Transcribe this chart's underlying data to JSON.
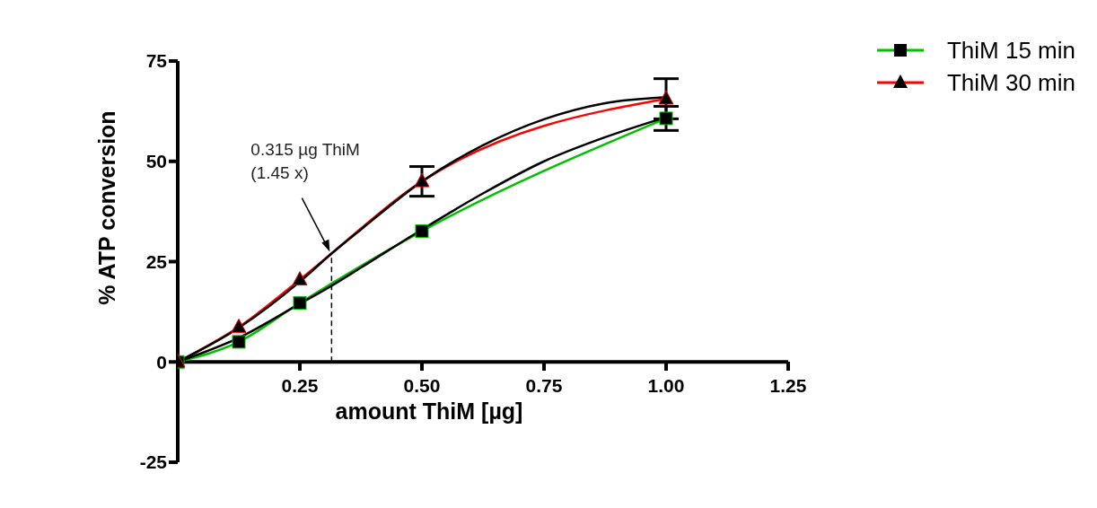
{
  "chart_data": {
    "type": "line",
    "xlabel": "amount ThiM [µg]",
    "ylabel": "% ATP conversion",
    "xlim": [
      0,
      1.25
    ],
    "xticks": [
      0.25,
      {
        "value": 0.5,
        "label": "0.50"
      },
      0.75,
      {
        "value": 1,
        "label": "1.00"
      },
      1.25
    ],
    "ylim": [
      -25,
      75
    ],
    "yticks": [
      -25,
      0,
      25,
      50,
      75
    ],
    "grid": false,
    "legend": "top right",
    "series": [
      {
        "name": "ThiM 15 min",
        "color": "#00c000",
        "marker": "square",
        "x": [
          0,
          0.125,
          0.25,
          0.5,
          1
        ],
        "values": [
          0,
          5,
          14.7,
          32.6,
          60.7
        ],
        "errors": [
          null,
          null,
          null,
          null,
          3
        ]
      },
      {
        "name": "ThiM 30 min",
        "color": "#ff0000",
        "marker": "triangle",
        "x": [
          0,
          0.125,
          0.25,
          0.5,
          1
        ],
        "values": [
          0,
          8.7,
          20.5,
          45,
          65.6
        ],
        "errors": [
          null,
          null,
          null,
          3.7,
          5
        ]
      },
      {
        "type": "line",
        "color": "#000000",
        "marker": "none",
        "x": [
          0,
          0.125,
          0.25,
          0.315,
          0.375,
          0.5,
          0.625,
          0.75,
          0.875,
          1
        ],
        "values": [
          0,
          6,
          14.5,
          19,
          23.5,
          33,
          42,
          50,
          56,
          61
        ]
      },
      {
        "type": "line",
        "color": "#000000",
        "marker": "none",
        "x": [
          0,
          0.125,
          0.25,
          0.315,
          0.375,
          0.5,
          0.625,
          0.75,
          0.875,
          1
        ],
        "values": [
          0,
          8.5,
          20,
          27,
          33,
          45,
          54,
          60.5,
          64.5,
          66
        ]
      }
    ],
    "ref_lines": [
      {
        "axis": "x",
        "value": 0.315,
        "line_style": "dashed",
        "color": "#000000"
      }
    ],
    "annotations": [
      "0.315 µg ThiM\n(1.45 x)"
    ]
  }
}
